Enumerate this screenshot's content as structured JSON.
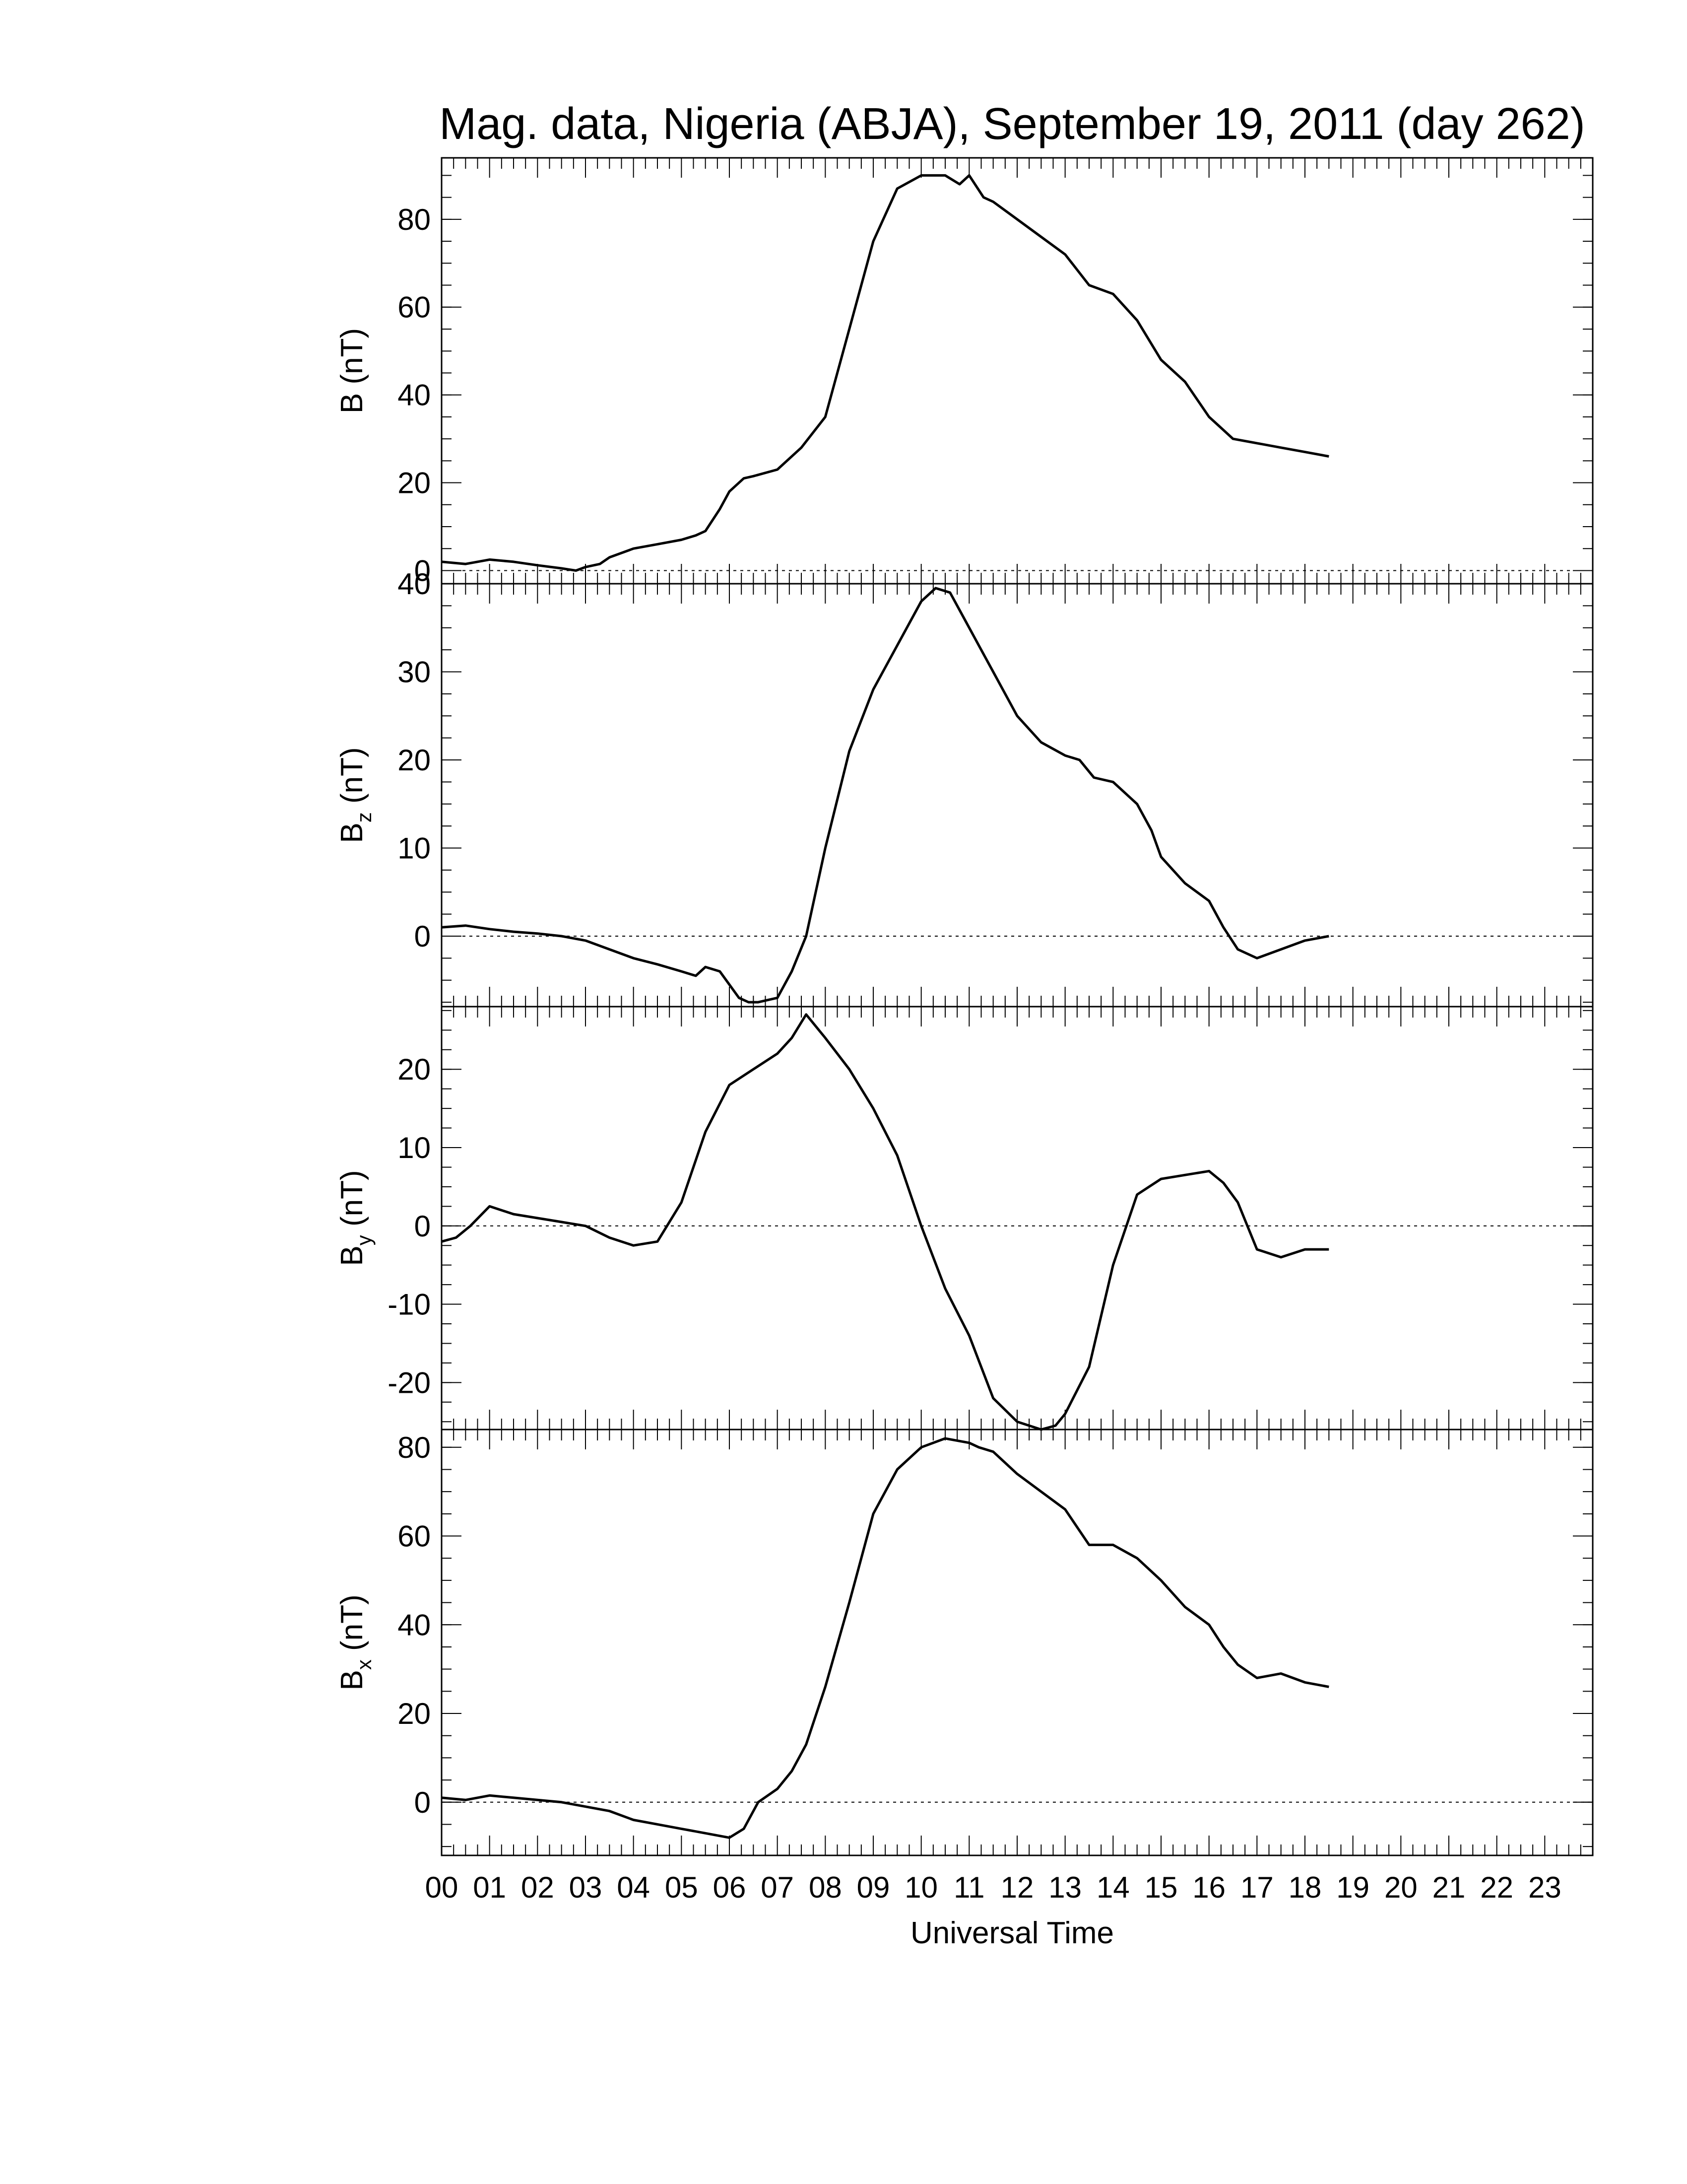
{
  "chart_data": {
    "title": "Mag. data, Nigeria (ABJA), September 19, 2011 (day 262)",
    "xlabel": "Universal Time",
    "xlim": [
      0,
      24
    ],
    "xticks": [
      "00",
      "01",
      "02",
      "03",
      "04",
      "05",
      "06",
      "07",
      "08",
      "09",
      "10",
      "11",
      "12",
      "13",
      "14",
      "15",
      "16",
      "17",
      "18",
      "19",
      "20",
      "21",
      "22",
      "23"
    ],
    "line_color": "#000000",
    "panels": [
      {
        "type": "line",
        "ylabel_main": "B",
        "ylabel_sub": "",
        "ylabel_unit": "(nT)",
        "ylim": [
          -3,
          94
        ],
        "yticks": [
          0,
          20,
          40,
          60,
          80
        ],
        "zero_line": true,
        "x": [
          0,
          0.5,
          1,
          1.5,
          2,
          2.5,
          2.8,
          3,
          3.3,
          3.5,
          4,
          4.5,
          5,
          5.3,
          5.5,
          5.8,
          6,
          6.3,
          6.5,
          7,
          7.5,
          8,
          8.5,
          9,
          9.5,
          10,
          10.2,
          10.5,
          10.8,
          11,
          11.3,
          11.5,
          12,
          12.5,
          13,
          13.5,
          14,
          14.5,
          15,
          15.5,
          16,
          16.3,
          16.5,
          17,
          17.5,
          18,
          18.5
        ],
        "y": [
          2,
          1.5,
          2.5,
          2,
          1.2,
          0.5,
          0,
          0.8,
          1.5,
          3,
          5,
          6,
          7,
          8,
          9,
          14,
          18,
          21,
          21.5,
          23,
          28,
          35,
          55,
          75,
          87,
          90,
          90,
          90,
          88,
          90,
          85,
          84,
          80,
          76,
          72,
          65,
          63,
          57,
          48,
          43,
          35,
          32,
          30,
          29,
          28,
          27,
          26
        ]
      },
      {
        "type": "line",
        "ylabel_main": "B",
        "ylabel_sub": "z",
        "ylabel_unit": "(nT)",
        "ylim": [
          -8,
          40
        ],
        "yticks": [
          0,
          10,
          20,
          30,
          40
        ],
        "zero_line": true,
        "x": [
          0,
          0.5,
          1,
          1.5,
          2,
          2.5,
          3,
          3.5,
          4,
          4.5,
          5,
          5.3,
          5.5,
          5.8,
          6,
          6.2,
          6.4,
          6.6,
          7,
          7.3,
          7.6,
          8,
          8.5,
          9,
          9.5,
          10,
          10.3,
          10.6,
          10.9,
          11.2,
          11.5,
          11.8,
          12,
          12.5,
          13,
          13.3,
          13.6,
          14,
          14.5,
          14.8,
          15,
          15.5,
          16,
          16.3,
          16.6,
          17,
          17.5,
          18,
          18.5
        ],
        "y": [
          1,
          1.2,
          0.8,
          0.5,
          0.3,
          0,
          -0.5,
          -1.5,
          -2.5,
          -3.2,
          -4,
          -4.5,
          -3.5,
          -4,
          -5.5,
          -7,
          -7.5,
          -7.5,
          -7,
          -4,
          0,
          10,
          21,
          28,
          33,
          38,
          39.5,
          39,
          36,
          33,
          30,
          27,
          25,
          22,
          20.5,
          20,
          18,
          17.5,
          15,
          12,
          9,
          6,
          4,
          1,
          -1.5,
          -2.5,
          -1.5,
          -0.5,
          0
        ]
      },
      {
        "type": "line",
        "ylabel_main": "B",
        "ylabel_sub": "y",
        "ylabel_unit": "(nT)",
        "ylim": [
          -26,
          28
        ],
        "yticks": [
          -20,
          -10,
          0,
          10,
          20
        ],
        "zero_line": true,
        "x": [
          0,
          0.3,
          0.6,
          1,
          1.5,
          2,
          2.5,
          3,
          3.5,
          4,
          4.5,
          5,
          5.5,
          6,
          6.5,
          7,
          7.3,
          7.6,
          8,
          8.5,
          9,
          9.5,
          10,
          10.5,
          11,
          11.5,
          12,
          12.5,
          12.8,
          13,
          13.5,
          14,
          14.5,
          15,
          15.5,
          16,
          16.3,
          16.6,
          17,
          17.5,
          18,
          18.5
        ],
        "y": [
          -2,
          -1.5,
          0,
          2.5,
          1.5,
          1,
          0.5,
          0,
          -1.5,
          -2.5,
          -2,
          3,
          12,
          18,
          20,
          22,
          24,
          27,
          24,
          20,
          15,
          9,
          0,
          -8,
          -14,
          -22,
          -25,
          -26,
          -25.5,
          -24,
          -18,
          -5,
          4,
          6,
          6.5,
          7,
          5.5,
          3,
          -3,
          -4,
          -3,
          -3
        ]
      },
      {
        "type": "line",
        "ylabel_main": "B",
        "ylabel_sub": "x",
        "ylabel_unit": "(nT)",
        "ylim": [
          -12,
          84
        ],
        "yticks": [
          0,
          20,
          40,
          60,
          80
        ],
        "zero_line": true,
        "x": [
          0,
          0.5,
          1,
          1.5,
          2,
          2.5,
          3,
          3.5,
          4,
          4.5,
          5,
          5.5,
          6,
          6.3,
          6.6,
          7,
          7.3,
          7.6,
          8,
          8.5,
          9,
          9.5,
          10,
          10.5,
          11,
          11.2,
          11.5,
          12,
          12.5,
          13,
          13.5,
          14,
          14.5,
          15,
          15.5,
          16,
          16.3,
          16.6,
          17,
          17.5,
          18,
          18.5
        ],
        "y": [
          1,
          0.5,
          1.5,
          1,
          0.5,
          0,
          -1,
          -2,
          -4,
          -5,
          -6,
          -7,
          -8,
          -6,
          0,
          3,
          7,
          13,
          26,
          45,
          65,
          75,
          80,
          82,
          81,
          80,
          79,
          74,
          70,
          66,
          58,
          58,
          55,
          50,
          44,
          40,
          35,
          31,
          28,
          29,
          27,
          26
        ]
      }
    ]
  }
}
